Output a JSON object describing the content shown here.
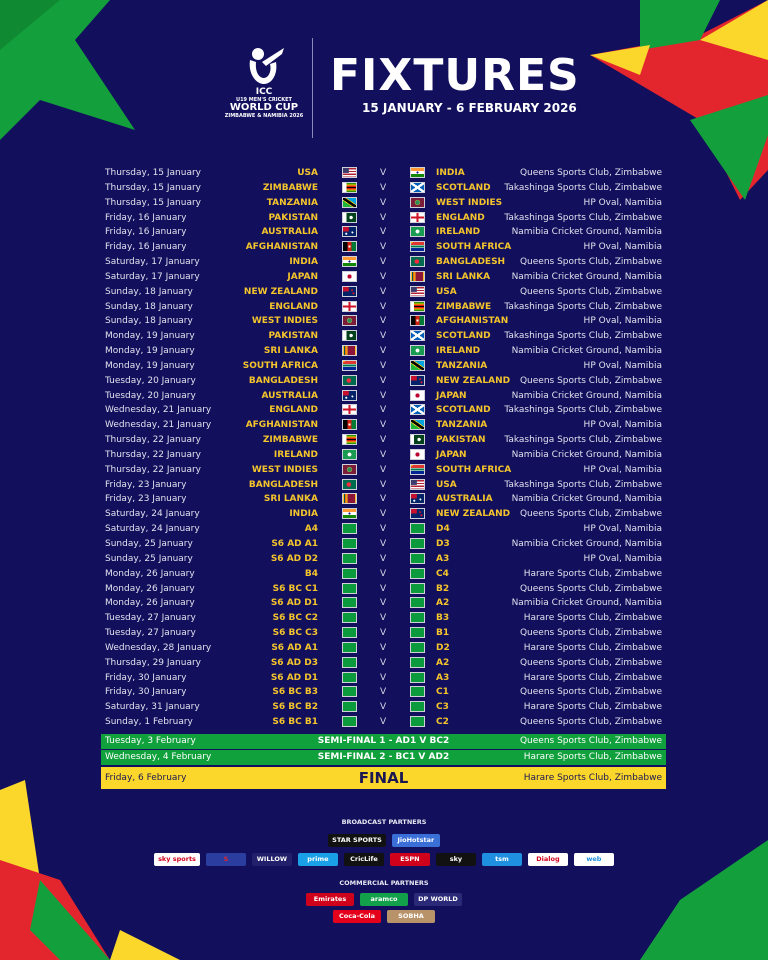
{
  "header": {
    "logo": {
      "line1": "ICC",
      "line2": "U19 MEN'S CRICKET",
      "line3": "WORLD CUP",
      "line4": "ZIMBABWE & NAMIBIA 2026"
    },
    "title": "FIXTURES",
    "subtitle": "15 JANUARY - 6 FEBRUARY 2026"
  },
  "versus": "V",
  "fixtures": [
    {
      "date": "Thursday, 15 January",
      "team1": "USA",
      "flag1": "flag-usa",
      "team2": "INDIA",
      "flag2": "flag-india",
      "venue": "Queens Sports Club, Zimbabwe"
    },
    {
      "date": "Thursday, 15 January",
      "team1": "ZIMBABWE",
      "flag1": "flag-zimbabwe",
      "team2": "SCOTLAND",
      "flag2": "flag-scotland",
      "venue": "Takashinga Sports Club, Zimbabwe"
    },
    {
      "date": "Thursday, 15 January",
      "team1": "TANZANIA",
      "flag1": "flag-tanzania",
      "team2": "WEST INDIES",
      "flag2": "flag-west-indies",
      "venue": "HP Oval, Namibia"
    },
    {
      "date": "Friday, 16 January",
      "team1": "PAKISTAN",
      "flag1": "flag-pakistan",
      "team2": "ENGLAND",
      "flag2": "flag-england",
      "venue": "Takashinga Sports Club, Zimbabwe"
    },
    {
      "date": "Friday, 16 January",
      "team1": "AUSTRALIA",
      "flag1": "flag-australia",
      "team2": "IRELAND",
      "flag2": "flag-ireland",
      "venue": "Namibia Cricket Ground, Namibia"
    },
    {
      "date": "Friday, 16 January",
      "team1": "AFGHANISTAN",
      "flag1": "flag-afghanistan",
      "team2": "SOUTH AFRICA",
      "flag2": "flag-south-africa",
      "venue": "HP Oval, Namibia"
    },
    {
      "date": "Saturday, 17 January",
      "team1": "INDIA",
      "flag1": "flag-india",
      "team2": "BANGLADESH",
      "flag2": "flag-bangladesh",
      "venue": "Queens Sports Club, Zimbabwe"
    },
    {
      "date": "Saturday, 17 January",
      "team1": "JAPAN",
      "flag1": "flag-japan",
      "team2": "SRI LANKA",
      "flag2": "flag-sri-lanka",
      "venue": "Namibia Cricket Ground, Namibia"
    },
    {
      "date": "Sunday, 18 January",
      "team1": "NEW ZEALAND",
      "flag1": "flag-new-zealand",
      "team2": "USA",
      "flag2": "flag-usa",
      "venue": "Queens Sports Club, Zimbabwe"
    },
    {
      "date": "Sunday, 18 January",
      "team1": "ENGLAND",
      "flag1": "flag-england",
      "team2": "ZIMBABWE",
      "flag2": "flag-zimbabwe",
      "venue": "Takashinga Sports Club, Zimbabwe"
    },
    {
      "date": "Sunday, 18 January",
      "team1": "WEST INDIES",
      "flag1": "flag-west-indies",
      "team2": "AFGHANISTAN",
      "flag2": "flag-afghanistan",
      "venue": "HP Oval, Namibia"
    },
    {
      "date": "Monday, 19 January",
      "team1": "PAKISTAN",
      "flag1": "flag-pakistan",
      "team2": "SCOTLAND",
      "flag2": "flag-scotland",
      "venue": "Takashinga Sports Club, Zimbabwe"
    },
    {
      "date": "Monday, 19 January",
      "team1": "SRI LANKA",
      "flag1": "flag-sri-lanka",
      "team2": "IRELAND",
      "flag2": "flag-ireland",
      "venue": "Namibia Cricket Ground, Namibia"
    },
    {
      "date": "Monday, 19 January",
      "team1": "SOUTH AFRICA",
      "flag1": "flag-south-africa",
      "team2": "TANZANIA",
      "flag2": "flag-tanzania",
      "venue": "HP Oval, Namibia"
    },
    {
      "date": "Tuesday, 20 January",
      "team1": "BANGLADESH",
      "flag1": "flag-bangladesh",
      "team2": "NEW ZEALAND",
      "flag2": "flag-new-zealand",
      "venue": "Queens Sports Club, Zimbabwe"
    },
    {
      "date": "Tuesday, 20 January",
      "team1": "AUSTRALIA",
      "flag1": "flag-australia",
      "team2": "JAPAN",
      "flag2": "flag-japan",
      "venue": "Namibia Cricket Ground, Namibia"
    },
    {
      "date": "Wednesday, 21 January",
      "team1": "ENGLAND",
      "flag1": "flag-england",
      "team2": "SCOTLAND",
      "flag2": "flag-scotland",
      "venue": "Takashinga Sports Club, Zimbabwe"
    },
    {
      "date": "Wednesday, 21 January",
      "team1": "AFGHANISTAN",
      "flag1": "flag-afghanistan",
      "team2": "TANZANIA",
      "flag2": "flag-tanzania",
      "venue": "HP Oval, Namibia"
    },
    {
      "date": "Thursday, 22 January",
      "team1": "ZIMBABWE",
      "flag1": "flag-zimbabwe",
      "team2": "PAKISTAN",
      "flag2": "flag-pakistan",
      "venue": "Takashinga Sports Club, Zimbabwe"
    },
    {
      "date": "Thursday, 22 January",
      "team1": "IRELAND",
      "flag1": "flag-ireland",
      "team2": "JAPAN",
      "flag2": "flag-japan",
      "venue": "Namibia Cricket Ground, Namibia"
    },
    {
      "date": "Thursday, 22 January",
      "team1": "WEST INDIES",
      "flag1": "flag-west-indies",
      "team2": "SOUTH AFRICA",
      "flag2": "flag-south-africa",
      "venue": "HP Oval, Namibia"
    },
    {
      "date": "Friday, 23 January",
      "team1": "BANGLADESH",
      "flag1": "flag-bangladesh",
      "team2": "USA",
      "flag2": "flag-usa",
      "venue": "Takashinga Sports Club, Zimbabwe"
    },
    {
      "date": "Friday, 23 January",
      "team1": "SRI LANKA",
      "flag1": "flag-sri-lanka",
      "team2": "AUSTRALIA",
      "flag2": "flag-australia",
      "venue": "Namibia Cricket Ground, Namibia"
    },
    {
      "date": "Saturday, 24 January",
      "team1": "INDIA",
      "flag1": "flag-india",
      "team2": "NEW ZEALAND",
      "flag2": "flag-new-zealand",
      "venue": "Queens Sports Club, Zimbabwe"
    },
    {
      "date": "Saturday, 24 January",
      "team1": "A4",
      "flag1": "flag-placeholder",
      "team2": "D4",
      "flag2": "flag-placeholder",
      "venue": "HP Oval, Namibia"
    },
    {
      "date": "Sunday, 25 January",
      "team1": "S6 AD A1",
      "flag1": "flag-placeholder",
      "team2": "D3",
      "flag2": "flag-placeholder",
      "venue": "Namibia Cricket Ground, Namibia"
    },
    {
      "date": "Sunday, 25 January",
      "team1": "S6 AD D2",
      "flag1": "flag-placeholder",
      "team2": "A3",
      "flag2": "flag-placeholder",
      "venue": "HP Oval, Namibia"
    },
    {
      "date": "Monday, 26 January",
      "team1": "B4",
      "flag1": "flag-placeholder",
      "team2": "C4",
      "flag2": "flag-placeholder",
      "venue": "Harare Sports Club, Zimbabwe"
    },
    {
      "date": "Monday, 26 January",
      "team1": "S6 BC C1",
      "flag1": "flag-placeholder",
      "team2": "B2",
      "flag2": "flag-placeholder",
      "venue": "Queens Sports Club, Zimbabwe"
    },
    {
      "date": "Monday, 26 January",
      "team1": "S6 AD D1",
      "flag1": "flag-placeholder",
      "team2": "A2",
      "flag2": "flag-placeholder",
      "venue": "Namibia Cricket Ground, Namibia"
    },
    {
      "date": "Tuesday, 27 January",
      "team1": "S6 BC C2",
      "flag1": "flag-placeholder",
      "team2": "B3",
      "flag2": "flag-placeholder",
      "venue": "Harare Sports Club, Zimbabwe"
    },
    {
      "date": "Tuesday, 27 January",
      "team1": "S6 BC C3",
      "flag1": "flag-placeholder",
      "team2": "B1",
      "flag2": "flag-placeholder",
      "venue": "Queens Sports Club, Zimbabwe"
    },
    {
      "date": "Wednesday, 28 January",
      "team1": "S6 AD A1",
      "flag1": "flag-placeholder",
      "team2": "D2",
      "flag2": "flag-placeholder",
      "venue": "Harare Sports Club, Zimbabwe"
    },
    {
      "date": "Thursday, 29 January",
      "team1": "S6 AD D3",
      "flag1": "flag-placeholder",
      "team2": "A2",
      "flag2": "flag-placeholder",
      "venue": "Queens Sports Club, Zimbabwe"
    },
    {
      "date": "Friday, 30 January",
      "team1": "S6 AD D1",
      "flag1": "flag-placeholder",
      "team2": "A3",
      "flag2": "flag-placeholder",
      "venue": "Harare Sports Club, Zimbabwe"
    },
    {
      "date": "Friday, 30 January",
      "team1": "S6 BC B3",
      "flag1": "flag-placeholder",
      "team2": "C1",
      "flag2": "flag-placeholder",
      "venue": "Queens Sports Club, Zimbabwe"
    },
    {
      "date": "Saturday, 31 January",
      "team1": "S6 BC B2",
      "flag1": "flag-placeholder",
      "team2": "C3",
      "flag2": "flag-placeholder",
      "venue": "Harare Sports Club, Zimbabwe"
    },
    {
      "date": "Sunday, 1 February",
      "team1": "S6 BC B1",
      "flag1": "flag-placeholder",
      "team2": "C2",
      "flag2": "flag-placeholder",
      "venue": "Queens Sports Club, Zimbabwe"
    }
  ],
  "knockouts": [
    {
      "date": "Tuesday, 3 February",
      "match": "SEMI-FINAL 1 - AD1 V BC2",
      "venue": "Queens Sports Club, Zimbabwe",
      "color": "#10a03c"
    },
    {
      "date": "Wednesday, 4 February",
      "match": "SEMI-FINAL 2 - BC1 V AD2",
      "venue": "Harare Sports Club, Zimbabwe",
      "color": "#10a03c"
    },
    {
      "date": "Friday, 6 February",
      "match": "FINAL",
      "venue": "Harare Sports Club, Zimbabwe",
      "color": "#fbd72c"
    }
  ],
  "broadcast": {
    "heading": "BROADCAST PARTNERS",
    "row1": [
      {
        "name": "STAR SPORTS",
        "bg": "#111111",
        "fg": "#ffffff"
      },
      {
        "name": "JioHotstar",
        "bg": "#3a6fd8",
        "fg": "#ffffff"
      }
    ],
    "row2": [
      {
        "name": "sky sports",
        "bg": "#ffffff",
        "fg": "#d0021b"
      },
      {
        "name": "S",
        "bg": "#2b3ea0",
        "fg": "#e3262e"
      },
      {
        "name": "WILLOW",
        "bg": "#22206a",
        "fg": "#ffffff"
      },
      {
        "name": "prime",
        "bg": "#1aa0e6",
        "fg": "#ffffff"
      },
      {
        "name": "CricLife",
        "bg": "#111111",
        "fg": "#ffffff"
      },
      {
        "name": "ESPN",
        "bg": "#d0021b",
        "fg": "#ffffff"
      },
      {
        "name": "sky",
        "bg": "#111111",
        "fg": "#ffffff"
      },
      {
        "name": "tsm",
        "bg": "#1f8fe0",
        "fg": "#ffffff"
      },
      {
        "name": "Dialog",
        "bg": "#ffffff",
        "fg": "#d0021b"
      },
      {
        "name": "web",
        "bg": "#ffffff",
        "fg": "#1f8fe0"
      }
    ]
  },
  "commercial": {
    "heading": "COMMERCIAL PARTNERS",
    "row1": [
      {
        "name": "Emirates",
        "bg": "#d0021b",
        "fg": "#ffffff"
      },
      {
        "name": "aramco",
        "bg": "#13a04a",
        "fg": "#ffffff"
      },
      {
        "name": "DP WORLD",
        "bg": "#2b2a78",
        "fg": "#ffffff"
      }
    ],
    "row2": [
      {
        "name": "Coca-Cola",
        "bg": "#e4001b",
        "fg": "#ffffff"
      },
      {
        "name": "SOBHA",
        "bg": "#b8936a",
        "fg": "#ffffff"
      }
    ]
  },
  "colors": {
    "background": "#120f5c",
    "team_text": "#f5c52c",
    "semi_band": "#10a03c",
    "final_band": "#fbd72c"
  }
}
